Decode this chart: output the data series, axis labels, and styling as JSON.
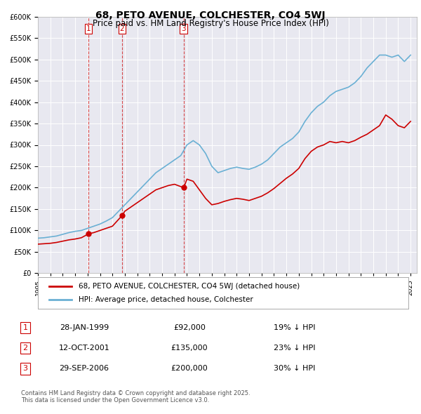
{
  "title": "68, PETO AVENUE, COLCHESTER, CO4 5WJ",
  "subtitle": "Price paid vs. HM Land Registry's House Price Index (HPI)",
  "bg_color": "#e8e8f0",
  "plot_bg_color": "#e8e8f0",
  "red_line_label": "68, PETO AVENUE, COLCHESTER, CO4 5WJ (detached house)",
  "blue_line_label": "HPI: Average price, detached house, Colchester",
  "transactions": [
    {
      "num": 1,
      "date": "28-JAN-1999",
      "price": 92000,
      "hpi_note": "19% ↓ HPI",
      "year": 1999.07
    },
    {
      "num": 2,
      "date": "12-OCT-2001",
      "price": 135000,
      "hpi_note": "23% ↓ HPI",
      "year": 2001.78
    },
    {
      "num": 3,
      "date": "29-SEP-2006",
      "price": 200000,
      "hpi_note": "30% ↓ HPI",
      "year": 2006.74
    }
  ],
  "footer": "Contains HM Land Registry data © Crown copyright and database right 2025.\nThis data is licensed under the Open Government Licence v3.0.",
  "hpi_years": [
    1995,
    1995.5,
    1996,
    1996.5,
    1997,
    1997.5,
    1998,
    1998.5,
    1999,
    1999.5,
    2000,
    2000.5,
    2001,
    2001.5,
    2002,
    2002.5,
    2003,
    2003.5,
    2004,
    2004.5,
    2005,
    2005.5,
    2006,
    2006.5,
    2007,
    2007.5,
    2008,
    2008.5,
    2009,
    2009.5,
    2010,
    2010.5,
    2011,
    2011.5,
    2012,
    2012.5,
    2013,
    2013.5,
    2014,
    2014.5,
    2015,
    2015.5,
    2016,
    2016.5,
    2017,
    2017.5,
    2018,
    2018.5,
    2019,
    2019.5,
    2020,
    2020.5,
    2021,
    2021.5,
    2022,
    2022.5,
    2023,
    2023.5,
    2024,
    2024.5,
    2025
  ],
  "hpi_values": [
    82000,
    83000,
    85000,
    87000,
    91000,
    95000,
    98000,
    100000,
    105000,
    110000,
    115000,
    122000,
    130000,
    145000,
    160000,
    175000,
    190000,
    205000,
    220000,
    235000,
    245000,
    255000,
    265000,
    275000,
    300000,
    310000,
    300000,
    280000,
    250000,
    235000,
    240000,
    245000,
    248000,
    245000,
    243000,
    248000,
    255000,
    265000,
    280000,
    295000,
    305000,
    315000,
    330000,
    355000,
    375000,
    390000,
    400000,
    415000,
    425000,
    430000,
    435000,
    445000,
    460000,
    480000,
    495000,
    510000,
    510000,
    505000,
    510000,
    495000,
    510000
  ],
  "red_years": [
    1995,
    1995.5,
    1996,
    1996.5,
    1997,
    1997.5,
    1998,
    1998.5,
    1999.07,
    1999.5,
    2000,
    2000.5,
    2001,
    2001.78,
    2002,
    2002.5,
    2003,
    2003.5,
    2004,
    2004.5,
    2005,
    2005.5,
    2006,
    2006.74,
    2007,
    2007.5,
    2008,
    2008.5,
    2009,
    2009.5,
    2010,
    2010.5,
    2011,
    2011.5,
    2012,
    2012.5,
    2013,
    2013.5,
    2014,
    2014.5,
    2015,
    2015.5,
    2016,
    2016.5,
    2017,
    2017.5,
    2018,
    2018.5,
    2019,
    2019.5,
    2020,
    2020.5,
    2021,
    2021.5,
    2022,
    2022.5,
    2023,
    2023.5,
    2024,
    2024.5,
    2025
  ],
  "red_values": [
    68000,
    69000,
    70000,
    72000,
    75000,
    78000,
    80000,
    83000,
    92000,
    95000,
    100000,
    105000,
    110000,
    135000,
    145000,
    155000,
    165000,
    175000,
    185000,
    195000,
    200000,
    205000,
    208000,
    200000,
    220000,
    215000,
    195000,
    175000,
    160000,
    163000,
    168000,
    172000,
    175000,
    173000,
    170000,
    175000,
    180000,
    188000,
    198000,
    210000,
    222000,
    232000,
    245000,
    268000,
    285000,
    295000,
    300000,
    308000,
    305000,
    308000,
    305000,
    310000,
    318000,
    325000,
    335000,
    345000,
    370000,
    360000,
    345000,
    340000,
    355000
  ],
  "ylim": [
    0,
    600000
  ],
  "yticks": [
    0,
    50000,
    100000,
    150000,
    200000,
    250000,
    300000,
    350000,
    400000,
    450000,
    500000,
    550000,
    600000
  ],
  "xlim": [
    1995,
    2025.5
  ],
  "xticks": [
    1995,
    1996,
    1997,
    1998,
    1999,
    2000,
    2001,
    2002,
    2003,
    2004,
    2005,
    2006,
    2007,
    2008,
    2009,
    2010,
    2011,
    2012,
    2013,
    2014,
    2015,
    2016,
    2017,
    2018,
    2019,
    2020,
    2021,
    2022,
    2023,
    2024,
    2025
  ]
}
